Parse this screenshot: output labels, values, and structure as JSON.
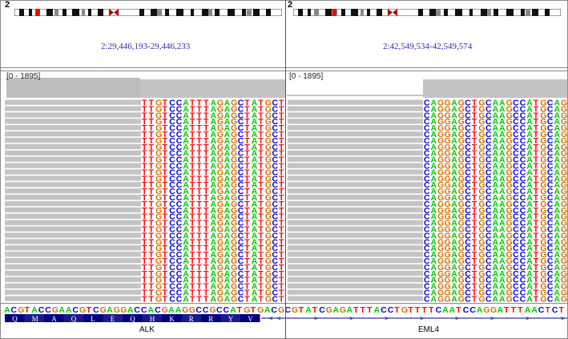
{
  "panels": [
    {
      "chromosome": "2",
      "locus": "2:29,446,193-29,446,233",
      "coverage_range": "[0 - 1895]",
      "read_bases": [
        "T",
        "T",
        "G",
        "T",
        "C",
        "C",
        "A",
        "T",
        "T",
        "T",
        "A",
        "G",
        "A",
        "G",
        "C",
        "T",
        "A",
        "T",
        "G",
        "C",
        "T"
      ],
      "gene": "ALK"
    },
    {
      "chromosome": "2",
      "locus": "2:42,549,534-42,549,574",
      "coverage_range": "[0 - 1895]",
      "read_bases": [
        "C",
        "A",
        "G",
        "G",
        "A",
        "G",
        "C",
        "T",
        "G",
        "C",
        "A",
        "A",
        "G",
        "C",
        "C",
        "A",
        "T",
        "G",
        "C",
        "A",
        "G"
      ],
      "gene": "EML4"
    }
  ],
  "reference_sequence": "ACGTACCGAACGTCGAGGACCACGAAGGCCGCCATGTGACGCGTATCGAGATTTACCTGTTTTCAATCCAGGATTTAACTCT",
  "amino_acids": [
    "Q",
    "M",
    "A",
    "Q",
    "L",
    "E",
    "Q",
    "H",
    "K",
    "R",
    "R",
    "Y",
    "V"
  ],
  "colors": {
    "A": "#00cc00",
    "C": "#0000e0",
    "G": "#d17105",
    "T": "#ff0000",
    "read_gray": "#c4c4c4",
    "gene_blue": "#000080",
    "locus_blue": "#2a2ab8"
  }
}
